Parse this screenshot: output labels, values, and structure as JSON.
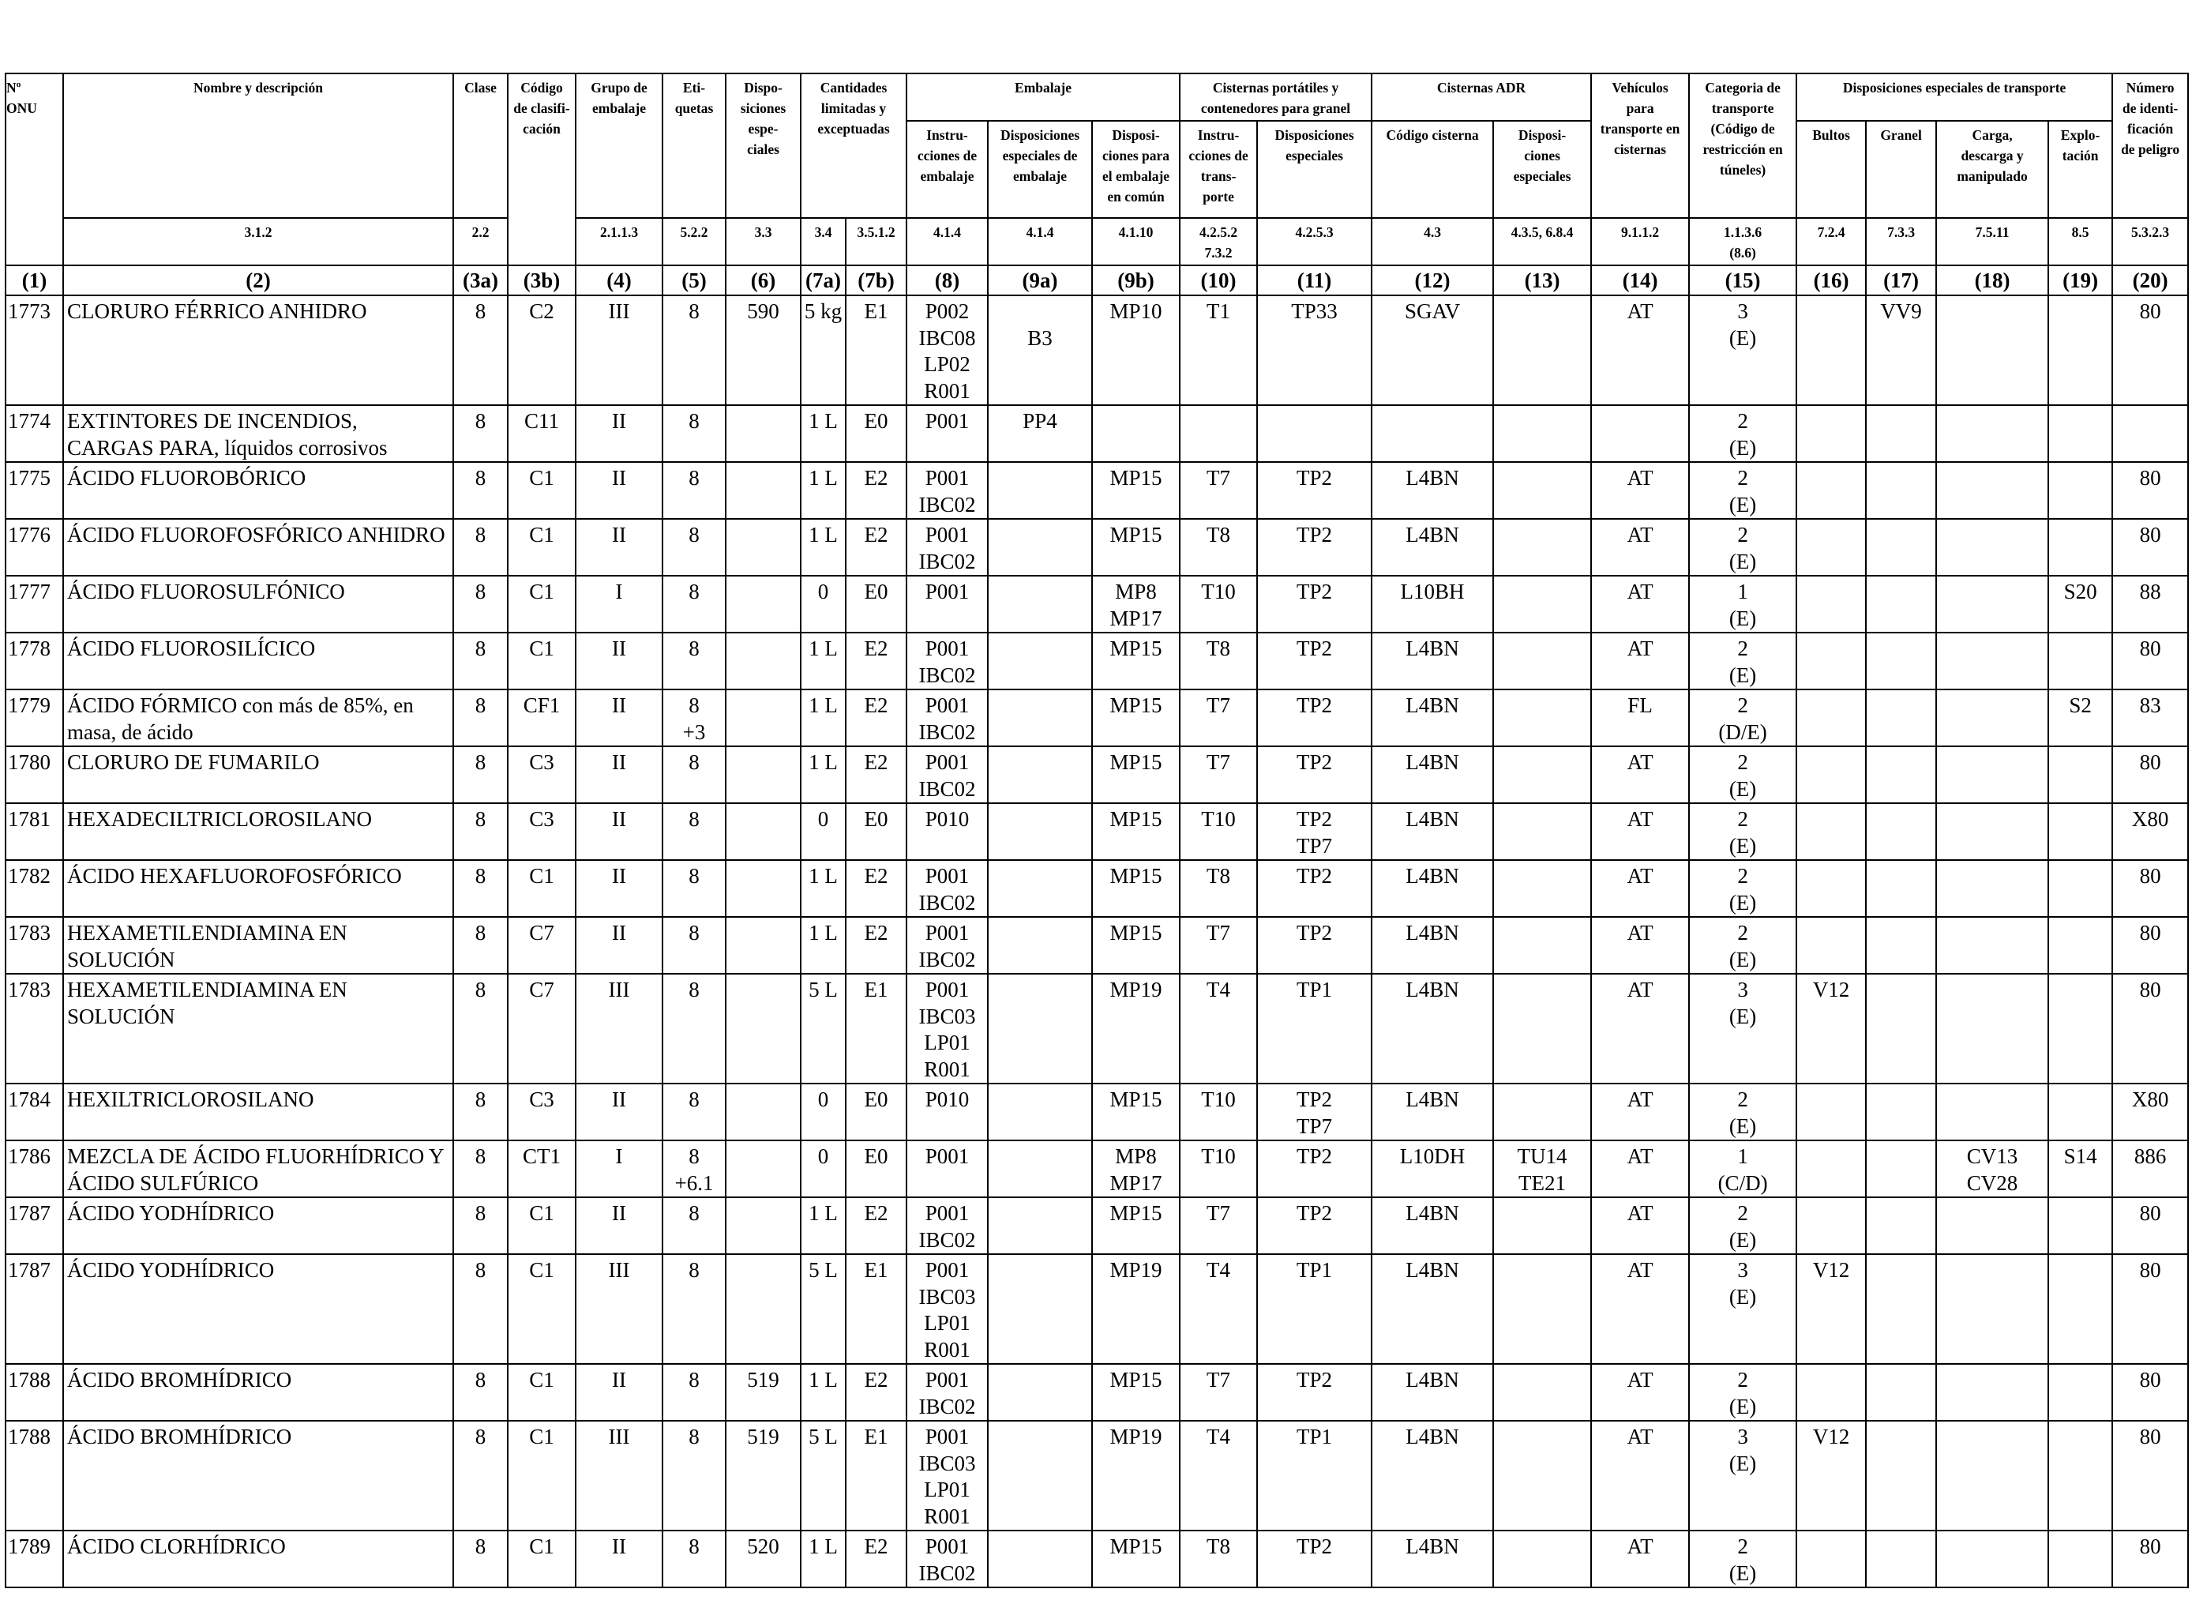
{
  "columns": [
    {
      "key": "un",
      "code": "(1)"
    },
    {
      "key": "name",
      "code": "(2)"
    },
    {
      "key": "clase",
      "code": "(3a)"
    },
    {
      "key": "codigo",
      "code": "(3b)"
    },
    {
      "key": "grupo",
      "code": "(4)"
    },
    {
      "key": "etiquetas",
      "code": "(5)"
    },
    {
      "key": "disp_esp",
      "code": "(6)"
    },
    {
      "key": "cant_lim",
      "code": "(7a)"
    },
    {
      "key": "cant_exc",
      "code": "(7b)"
    },
    {
      "key": "instr",
      "code": "(8)"
    },
    {
      "key": "disp_emb",
      "code": "(9a)"
    },
    {
      "key": "disp_comun",
      "code": "(9b)"
    },
    {
      "key": "cist_instr",
      "code": "(10)"
    },
    {
      "key": "cist_disp",
      "code": "(11)"
    },
    {
      "key": "cod_cisterna",
      "code": "(12)"
    },
    {
      "key": "cist_adr_disp",
      "code": "(13)"
    },
    {
      "key": "vehiculos",
      "code": "(14)"
    },
    {
      "key": "categoria",
      "code": "(15)"
    },
    {
      "key": "bultos",
      "code": "(16)"
    },
    {
      "key": "granel",
      "code": "(17)"
    },
    {
      "key": "carga",
      "code": "(18)"
    },
    {
      "key": "explotacion",
      "code": "(19)"
    },
    {
      "key": "num_peligro",
      "code": "(20)"
    }
  ],
  "header": {
    "un": "Nº\nONU",
    "name": "Nombre y descripción",
    "name_ref": "3.1.2",
    "clase": "Clase",
    "clase_ref": "2.2",
    "codigo": "Código\nde clasifi-\ncación",
    "grupo": "Grupo de\nembalaje",
    "grupo_ref": "2.1.1.3",
    "etiquetas": "Eti-\nquetas",
    "etiquetas_ref": "5.2.2",
    "disp_esp": "Dispo-\nsiciones\nespe-\nciales",
    "disp_esp_ref": "3.3",
    "cantidades": "Cantidades\nlimitadas y\nexceptuadas",
    "cant_lim_ref": "3.4",
    "cant_exc_ref": "3.5.1.2",
    "embalaje": "Embalaje",
    "instr": "Instru-\ncciones de\nembalaje",
    "instr_ref": "4.1.4",
    "disp_emb": "Disposiciones\nespeciales de\nembalaje",
    "disp_emb_ref": "4.1.4",
    "disp_comun": "Disposi-\nciones para\nel embalaje\nen común",
    "disp_comun_ref": "4.1.10",
    "cisternas_port": "Cisternas portátiles y\ncontenedores para granel",
    "cist_instr": "Instru-\ncciones de\ntrans-\nporte",
    "cist_instr_ref": "4.2.5.2\n7.3.2",
    "cist_disp": "Disposiciones\nespeciales",
    "cist_disp_ref": "4.2.5.3",
    "cisternas_adr": "Cisternas ADR",
    "cod_cisterna": "Código cisterna",
    "cod_cisterna_ref": "4.3",
    "cist_adr_disp": "Disposi-\nciones\nespeciales",
    "cist_adr_disp_ref": "4.3.5, 6.8.4",
    "vehiculos": "Vehículos\npara\ntransporte en\ncisternas",
    "vehiculos_ref": "9.1.1.2",
    "categoria": "Categoria de\ntransporte\n(Código de\nrestricción en\ntúneles)",
    "categoria_ref": "1.1.3.6\n(8.6)",
    "disp_transp": "Disposiciones especiales de transporte",
    "bultos": "Bultos",
    "bultos_ref": "7.2.4",
    "granel": "Granel",
    "granel_ref": "7.3.3",
    "carga": "Carga,\ndescarga y\nmanipulado",
    "carga_ref": "7.5.11",
    "explotacion": "Explo-\ntación",
    "explotacion_ref": "8.5",
    "num_peligro": "Número\nde identi-\nficación\nde peligro",
    "num_peligro_ref": "5.3.2.3"
  },
  "rows": [
    {
      "un": "1773",
      "name": "CLORURO FÉRRICO ANHIDRO",
      "clase": "8",
      "codigo": "C2",
      "grupo": "III",
      "etiquetas": "8",
      "disp_esp": "590",
      "cant_lim": "5 kg",
      "cant_exc": "E1",
      "instr": "P002\nIBC08\nLP02\nR001",
      "disp_emb": "\nB3",
      "disp_comun": "MP10",
      "cist_instr": "T1",
      "cist_disp": "TP33",
      "cod_cisterna": "SGAV",
      "cist_adr_disp": "",
      "vehiculos": "AT",
      "categoria": "3\n(E)",
      "bultos": "",
      "granel": "VV9",
      "carga": "",
      "explotacion": "",
      "num_peligro": "80"
    },
    {
      "un": "1774",
      "name": "EXTINTORES DE INCENDIOS,\nCARGAS PARA, líquidos corrosivos",
      "clase": "8",
      "codigo": "C11",
      "grupo": "II",
      "etiquetas": "8",
      "disp_esp": "",
      "cant_lim": "1 L",
      "cant_exc": "E0",
      "instr": "P001",
      "disp_emb": "PP4",
      "disp_comun": "",
      "cist_instr": "",
      "cist_disp": "",
      "cod_cisterna": "",
      "cist_adr_disp": "",
      "vehiculos": "",
      "categoria": "2\n(E)",
      "bultos": "",
      "granel": "",
      "carga": "",
      "explotacion": "",
      "num_peligro": ""
    },
    {
      "un": "1775",
      "name": "ÁCIDO FLUOROBÓRICO",
      "clase": "8",
      "codigo": "C1",
      "grupo": "II",
      "etiquetas": "8",
      "disp_esp": "",
      "cant_lim": "1 L",
      "cant_exc": "E2",
      "instr": "P001\nIBC02",
      "disp_emb": "",
      "disp_comun": "MP15",
      "cist_instr": "T7",
      "cist_disp": "TP2",
      "cod_cisterna": "L4BN",
      "cist_adr_disp": "",
      "vehiculos": "AT",
      "categoria": "2\n(E)",
      "bultos": "",
      "granel": "",
      "carga": "",
      "explotacion": "",
      "num_peligro": "80"
    },
    {
      "un": "1776",
      "name": "ÁCIDO FLUOROFOSFÓRICO ANHIDRO",
      "clase": "8",
      "codigo": "C1",
      "grupo": "II",
      "etiquetas": "8",
      "disp_esp": "",
      "cant_lim": "1 L",
      "cant_exc": "E2",
      "instr": "P001\nIBC02",
      "disp_emb": "",
      "disp_comun": "MP15",
      "cist_instr": "T8",
      "cist_disp": "TP2",
      "cod_cisterna": "L4BN",
      "cist_adr_disp": "",
      "vehiculos": "AT",
      "categoria": "2\n(E)",
      "bultos": "",
      "granel": "",
      "carga": "",
      "explotacion": "",
      "num_peligro": "80"
    },
    {
      "un": "1777",
      "name": "ÁCIDO FLUOROSULFÓNICO",
      "clase": "8",
      "codigo": "C1",
      "grupo": "I",
      "etiquetas": "8",
      "disp_esp": "",
      "cant_lim": "0",
      "cant_exc": "E0",
      "instr": "P001",
      "disp_emb": "",
      "disp_comun": "MP8\nMP17",
      "cist_instr": "T10",
      "cist_disp": "TP2",
      "cod_cisterna": "L10BH",
      "cist_adr_disp": "",
      "vehiculos": "AT",
      "categoria": "1\n(E)",
      "bultos": "",
      "granel": "",
      "carga": "",
      "explotacion": "S20",
      "num_peligro": "88"
    },
    {
      "un": "1778",
      "name": "ÁCIDO FLUOROSILÍCICO",
      "clase": "8",
      "codigo": "C1",
      "grupo": "II",
      "etiquetas": "8",
      "disp_esp": "",
      "cant_lim": "1 L",
      "cant_exc": "E2",
      "instr": "P001\nIBC02",
      "disp_emb": "",
      "disp_comun": "MP15",
      "cist_instr": "T8",
      "cist_disp": "TP2",
      "cod_cisterna": "L4BN",
      "cist_adr_disp": "",
      "vehiculos": "AT",
      "categoria": "2\n(E)",
      "bultos": "",
      "granel": "",
      "carga": "",
      "explotacion": "",
      "num_peligro": "80"
    },
    {
      "un": "1779",
      "name": "ÁCIDO FÓRMICO con más de 85%, en\nmasa, de ácido",
      "clase": "8",
      "codigo": "CF1",
      "grupo": "II",
      "etiquetas": "8\n+3",
      "disp_esp": "",
      "cant_lim": "1 L",
      "cant_exc": "E2",
      "instr": "P001\nIBC02",
      "disp_emb": "",
      "disp_comun": "MP15",
      "cist_instr": "T7",
      "cist_disp": "TP2",
      "cod_cisterna": "L4BN",
      "cist_adr_disp": "",
      "vehiculos": "FL",
      "categoria": "2\n(D/E)",
      "bultos": "",
      "granel": "",
      "carga": "",
      "explotacion": "S2",
      "num_peligro": "83"
    },
    {
      "un": "1780",
      "name": "CLORURO DE FUMARILO",
      "clase": "8",
      "codigo": "C3",
      "grupo": "II",
      "etiquetas": "8",
      "disp_esp": "",
      "cant_lim": "1 L",
      "cant_exc": "E2",
      "instr": "P001\nIBC02",
      "disp_emb": "",
      "disp_comun": "MP15",
      "cist_instr": "T7",
      "cist_disp": "TP2",
      "cod_cisterna": "L4BN",
      "cist_adr_disp": "",
      "vehiculos": "AT",
      "categoria": "2\n(E)",
      "bultos": "",
      "granel": "",
      "carga": "",
      "explotacion": "",
      "num_peligro": "80"
    },
    {
      "un": "1781",
      "name": "HEXADECILTRICLOROSILANO",
      "clase": "8",
      "codigo": "C3",
      "grupo": "II",
      "etiquetas": "8",
      "disp_esp": "",
      "cant_lim": "0",
      "cant_exc": "E0",
      "instr": "P010",
      "disp_emb": "",
      "disp_comun": "MP15",
      "cist_instr": "T10",
      "cist_disp": "TP2\nTP7",
      "cod_cisterna": "L4BN",
      "cist_adr_disp": "",
      "vehiculos": "AT",
      "categoria": "2\n(E)",
      "bultos": "",
      "granel": "",
      "carga": "",
      "explotacion": "",
      "num_peligro": "X80"
    },
    {
      "un": "1782",
      "name": "ÁCIDO HEXAFLUOROFOSFÓRICO",
      "clase": "8",
      "codigo": "C1",
      "grupo": "II",
      "etiquetas": "8",
      "disp_esp": "",
      "cant_lim": "1 L",
      "cant_exc": "E2",
      "instr": "P001\nIBC02",
      "disp_emb": "",
      "disp_comun": "MP15",
      "cist_instr": "T8",
      "cist_disp": "TP2",
      "cod_cisterna": "L4BN",
      "cist_adr_disp": "",
      "vehiculos": "AT",
      "categoria": "2\n(E)",
      "bultos": "",
      "granel": "",
      "carga": "",
      "explotacion": "",
      "num_peligro": "80"
    },
    {
      "un": "1783",
      "name": "HEXAMETILENDIAMINA EN SOLUCIÓN",
      "clase": "8",
      "codigo": "C7",
      "grupo": "II",
      "etiquetas": "8",
      "disp_esp": "",
      "cant_lim": "1 L",
      "cant_exc": "E2",
      "instr": "P001\nIBC02",
      "disp_emb": "",
      "disp_comun": "MP15",
      "cist_instr": "T7",
      "cist_disp": "TP2",
      "cod_cisterna": "L4BN",
      "cist_adr_disp": "",
      "vehiculos": "AT",
      "categoria": "2\n(E)",
      "bultos": "",
      "granel": "",
      "carga": "",
      "explotacion": "",
      "num_peligro": "80"
    },
    {
      "un": "1783",
      "name": "HEXAMETILENDIAMINA EN SOLUCIÓN",
      "clase": "8",
      "codigo": "C7",
      "grupo": "III",
      "etiquetas": "8",
      "disp_esp": "",
      "cant_lim": "5 L",
      "cant_exc": "E1",
      "instr": "P001\nIBC03\nLP01\nR001",
      "disp_emb": "",
      "disp_comun": "MP19",
      "cist_instr": "T4",
      "cist_disp": "TP1",
      "cod_cisterna": "L4BN",
      "cist_adr_disp": "",
      "vehiculos": "AT",
      "categoria": "3\n(E)",
      "bultos": "V12",
      "granel": "",
      "carga": "",
      "explotacion": "",
      "num_peligro": "80"
    },
    {
      "un": "1784",
      "name": "HEXILTRICLOROSILANO",
      "clase": "8",
      "codigo": "C3",
      "grupo": "II",
      "etiquetas": "8",
      "disp_esp": "",
      "cant_lim": "0",
      "cant_exc": "E0",
      "instr": "P010",
      "disp_emb": "",
      "disp_comun": "MP15",
      "cist_instr": "T10",
      "cist_disp": "TP2\nTP7",
      "cod_cisterna": "L4BN",
      "cist_adr_disp": "",
      "vehiculos": "AT",
      "categoria": "2\n(E)",
      "bultos": "",
      "granel": "",
      "carga": "",
      "explotacion": "",
      "num_peligro": "X80"
    },
    {
      "un": "1786",
      "name": "MEZCLA DE ÁCIDO FLUORHÍDRICO Y\nÁCIDO SULFÚRICO",
      "clase": "8",
      "codigo": "CT1",
      "grupo": "I",
      "etiquetas": "8\n+6.1",
      "disp_esp": "",
      "cant_lim": "0",
      "cant_exc": "E0",
      "instr": "P001",
      "disp_emb": "",
      "disp_comun": "MP8\nMP17",
      "cist_instr": "T10",
      "cist_disp": "TP2",
      "cod_cisterna": "L10DH",
      "cist_adr_disp": "TU14\nTE21",
      "vehiculos": "AT",
      "categoria": "1\n(C/D)",
      "bultos": "",
      "granel": "",
      "carga": "CV13\nCV28",
      "explotacion": "S14",
      "num_peligro": "886"
    },
    {
      "un": "1787",
      "name": "ÁCIDO YODHÍDRICO",
      "clase": "8",
      "codigo": "C1",
      "grupo": "II",
      "etiquetas": "8",
      "disp_esp": "",
      "cant_lim": "1 L",
      "cant_exc": "E2",
      "instr": "P001\nIBC02",
      "disp_emb": "",
      "disp_comun": "MP15",
      "cist_instr": "T7",
      "cist_disp": "TP2",
      "cod_cisterna": "L4BN",
      "cist_adr_disp": "",
      "vehiculos": "AT",
      "categoria": "2\n(E)",
      "bultos": "",
      "granel": "",
      "carga": "",
      "explotacion": "",
      "num_peligro": "80"
    },
    {
      "un": "1787",
      "name": "ÁCIDO YODHÍDRICO",
      "clase": "8",
      "codigo": "C1",
      "grupo": "III",
      "etiquetas": "8",
      "disp_esp": "",
      "cant_lim": "5 L",
      "cant_exc": "E1",
      "instr": "P001\nIBC03\nLP01\nR001",
      "disp_emb": "",
      "disp_comun": "MP19",
      "cist_instr": "T4",
      "cist_disp": "TP1",
      "cod_cisterna": "L4BN",
      "cist_adr_disp": "",
      "vehiculos": "AT",
      "categoria": "3\n(E)",
      "bultos": "V12",
      "granel": "",
      "carga": "",
      "explotacion": "",
      "num_peligro": "80"
    },
    {
      "un": "1788",
      "name": "ÁCIDO BROMHÍDRICO",
      "clase": "8",
      "codigo": "C1",
      "grupo": "II",
      "etiquetas": "8",
      "disp_esp": "519",
      "cant_lim": "1 L",
      "cant_exc": "E2",
      "instr": "P001\nIBC02",
      "disp_emb": "",
      "disp_comun": "MP15",
      "cist_instr": "T7",
      "cist_disp": "TP2",
      "cod_cisterna": "L4BN",
      "cist_adr_disp": "",
      "vehiculos": "AT",
      "categoria": "2\n(E)",
      "bultos": "",
      "granel": "",
      "carga": "",
      "explotacion": "",
      "num_peligro": "80"
    },
    {
      "un": "1788",
      "name": "ÁCIDO BROMHÍDRICO",
      "clase": "8",
      "codigo": "C1",
      "grupo": "III",
      "etiquetas": "8",
      "disp_esp": "519",
      "cant_lim": "5 L",
      "cant_exc": "E1",
      "instr": "P001\nIBC03\nLP01\nR001",
      "disp_emb": "",
      "disp_comun": "MP19",
      "cist_instr": "T4",
      "cist_disp": "TP1",
      "cod_cisterna": "L4BN",
      "cist_adr_disp": "",
      "vehiculos": "AT",
      "categoria": "3\n(E)",
      "bultos": "V12",
      "granel": "",
      "carga": "",
      "explotacion": "",
      "num_peligro": "80"
    },
    {
      "un": "1789",
      "name": "ÁCIDO CLORHÍDRICO",
      "clase": "8",
      "codigo": "C1",
      "grupo": "II",
      "etiquetas": "8",
      "disp_esp": "520",
      "cant_lim": "1 L",
      "cant_exc": "E2",
      "instr": "P001\nIBC02",
      "disp_emb": "",
      "disp_comun": "MP15",
      "cist_instr": "T8",
      "cist_disp": "TP2",
      "cod_cisterna": "L4BN",
      "cist_adr_disp": "",
      "vehiculos": "AT",
      "categoria": "2\n(E)",
      "bultos": "",
      "granel": "",
      "carga": "",
      "explotacion": "",
      "num_peligro": "80"
    }
  ]
}
